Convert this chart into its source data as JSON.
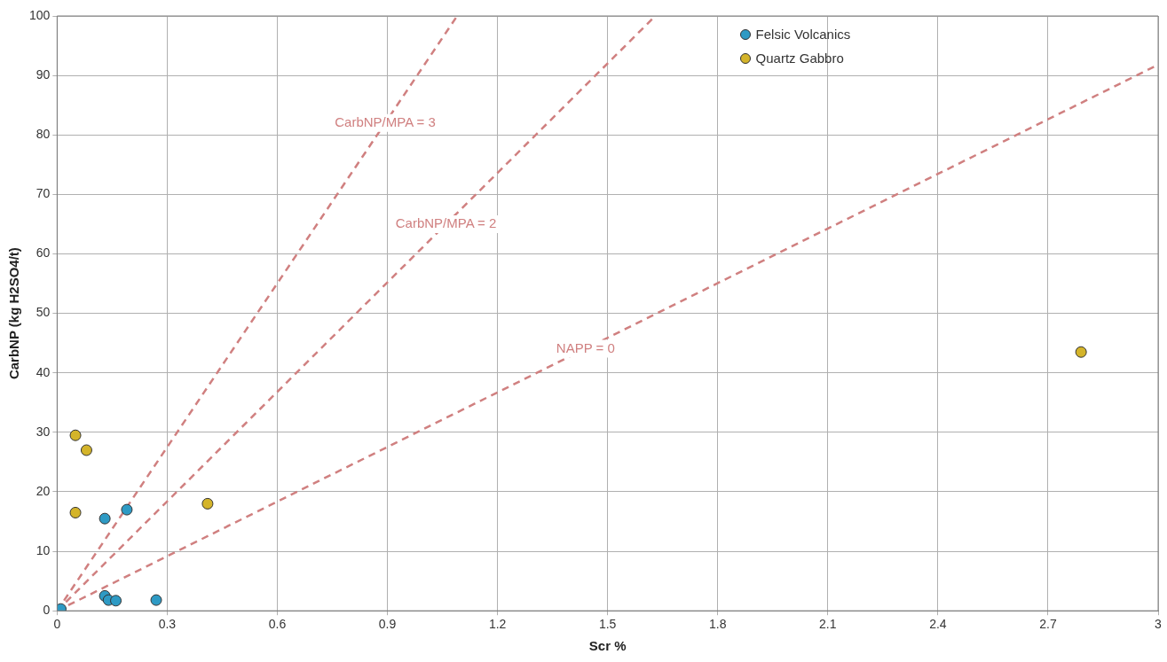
{
  "chart_data": {
    "type": "scatter",
    "xlabel": "Scr %",
    "ylabel": "CarbNP (kg H2SO4/t)",
    "xlim": [
      0,
      3
    ],
    "xticks": [
      0,
      0.3,
      0.6,
      0.9,
      1.2,
      1.5,
      1.8,
      2.1,
      2.4,
      2.7,
      3
    ],
    "ylim": [
      0,
      100
    ],
    "yticks": [
      0,
      10,
      20,
      30,
      40,
      50,
      60,
      70,
      80,
      90,
      100
    ],
    "grid": true,
    "legend": "top right",
    "marker": "circle",
    "series": [
      {
        "name": "Felsic Volcanics",
        "color": "#2e9ac4",
        "x": [
          0.01,
          0.13,
          0.19,
          0.13,
          0.14,
          0.16,
          0.27
        ],
        "values": [
          0.3,
          15.5,
          17,
          2.5,
          1.8,
          1.7,
          1.8
        ]
      },
      {
        "name": "Quartz Gabbro",
        "color": "#d4b42a",
        "x": [
          0.05,
          0.08,
          0.05,
          0.41,
          2.79
        ],
        "values": [
          29.5,
          27,
          16.5,
          18,
          43.5
        ]
      },
      {
        "name": "CarbNP/MPA = 3",
        "type": "line",
        "color": "#d08080",
        "line_style": "dashed",
        "marker": "none",
        "x": [
          0,
          1.09
        ],
        "values": [
          0,
          100
        ]
      },
      {
        "name": "CarbNP/MPA = 2",
        "type": "line",
        "color": "#d08080",
        "line_style": "dashed",
        "marker": "none",
        "x": [
          0,
          1.63
        ],
        "values": [
          0,
          100
        ]
      },
      {
        "name": "NAPP = 0",
        "type": "line",
        "color": "#d08080",
        "line_style": "dashed",
        "marker": "none",
        "x": [
          0,
          3
        ],
        "values": [
          0,
          91.8
        ]
      }
    ]
  }
}
